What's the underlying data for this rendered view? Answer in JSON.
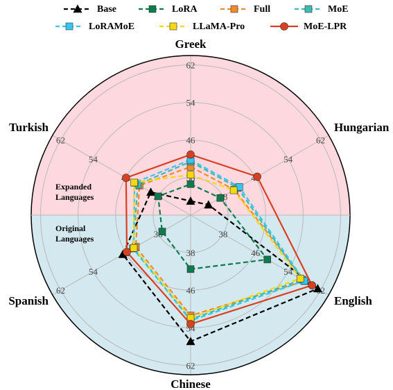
{
  "chart_data": {
    "type": "radar",
    "categories": [
      "Greek",
      "Hungarian",
      "English",
      "Chinese",
      "Spanish",
      "Turkish"
    ],
    "rlim": [
      30,
      64
    ],
    "rticks": [
      38,
      46,
      54,
      62
    ],
    "series": [
      {
        "name": "Base",
        "color": "#000000",
        "marker": "triangle",
        "values": [
          33,
          34.4,
          61.3,
          56.9,
          46.7,
          39.8
        ]
      },
      {
        "name": "LoRA",
        "color": "#0e7a4e",
        "marker": "square",
        "values": [
          36.6,
          37.3,
          48.9,
          41.5,
          37,
          38
        ]
      },
      {
        "name": "Full",
        "color": "#f08a2c",
        "marker": "square",
        "values": [
          40.3,
          40.8,
          58.1,
          51.4,
          43.5,
          42.6
        ]
      },
      {
        "name": "MoE",
        "color": "#3cbcb0",
        "marker": "square",
        "values": [
          41.4,
          41.6,
          57.5,
          52.2,
          44.2,
          43
        ]
      },
      {
        "name": "LoRAMoE",
        "color": "#36c6f0",
        "marker": "square",
        "values": [
          41.8,
          42,
          58,
          52.5,
          44,
          43.8
        ]
      },
      {
        "name": "LLaMA-Pro",
        "color": "#f5d90a",
        "marker": "square",
        "values": [
          38.6,
          40.6,
          57,
          51.9,
          44,
          43.9
        ]
      },
      {
        "name": "MoE-LPR",
        "color": "#d9401f",
        "marker": "circle",
        "values": [
          42.9,
          46.4,
          59.9,
          53.2,
          45.7,
          45.9
        ]
      }
    ],
    "annotations": [
      {
        "lines": [
          "Expanded",
          "Languages"
        ]
      },
      {
        "lines": [
          "Original",
          "Languages"
        ]
      }
    ]
  }
}
